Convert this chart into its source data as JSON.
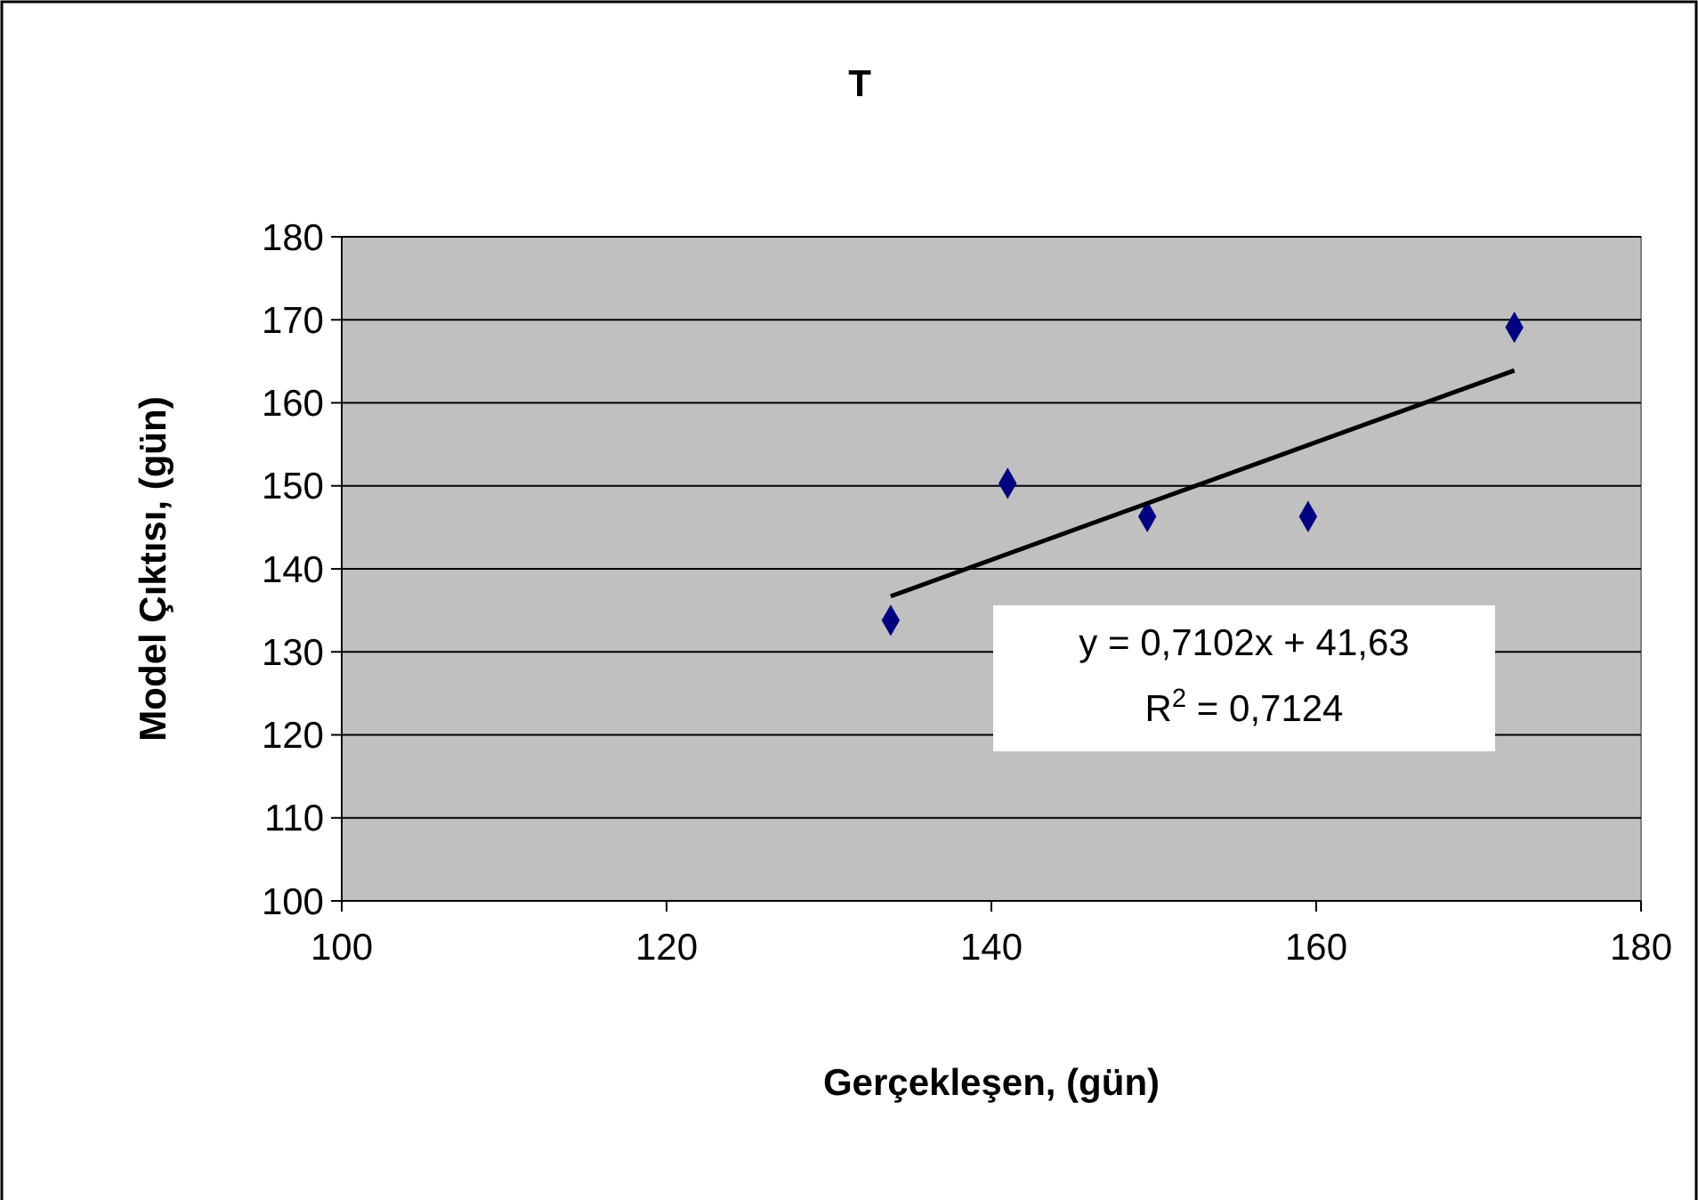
{
  "chart_data": {
    "type": "scatter",
    "title": "T",
    "xlabel": "Gerçekleşen, (gün)",
    "ylabel": "Model Çıktısı, (gün)",
    "series": [
      {
        "color": "#000080",
        "marker": "diamond",
        "x": [
          133.8,
          141.0,
          149.6,
          159.5,
          172.2
        ],
        "values": [
          133.8,
          150.3,
          146.3,
          146.3,
          169.1
        ]
      },
      {
        "type": "line",
        "color": "#000000",
        "marker": "none",
        "x": [
          133.8,
          172.2
        ],
        "values": [
          136.7,
          163.9
        ]
      }
    ],
    "xlim": [
      100,
      180
    ],
    "xticks": [
      100,
      120,
      140,
      160,
      180
    ],
    "ylim": [
      100,
      180
    ],
    "yticks": [
      100,
      110,
      120,
      130,
      140,
      150,
      160,
      170,
      180
    ],
    "grid": "y",
    "annotations": [
      "y = 0,7102x + 41,63",
      "R$^{2}$ = 0,7124"
    ]
  }
}
